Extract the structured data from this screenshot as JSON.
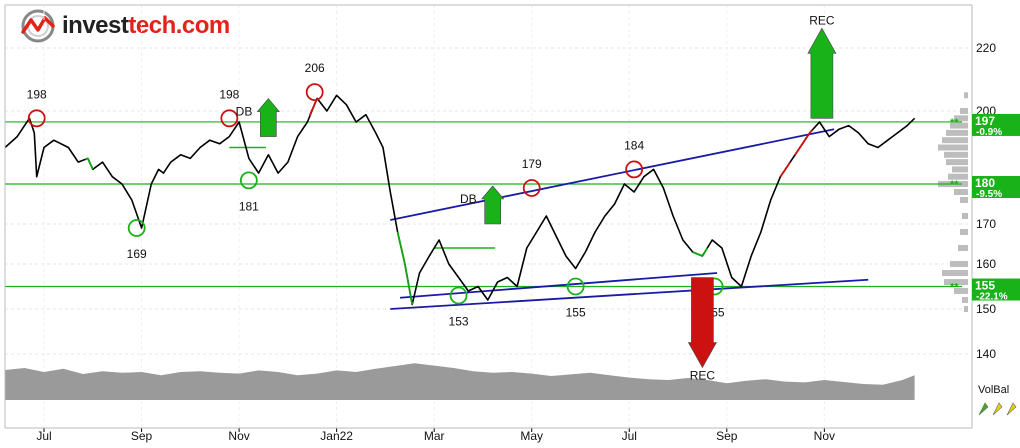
{
  "brand": {
    "name_part1": "invest",
    "name_part2": "tech.com"
  },
  "chart_data": {
    "type": "line",
    "title": "",
    "y_ticks": [
      140,
      150,
      160,
      170,
      180,
      200,
      220
    ],
    "x_ticks": [
      {
        "label": "Jul",
        "x": 1.0
      },
      {
        "label": "Sep",
        "x": 3.0
      },
      {
        "label": "Nov",
        "x": 5.0
      },
      {
        "label": "Jan22",
        "x": 7.0
      },
      {
        "label": "Mar",
        "x": 9.0
      },
      {
        "label": "May",
        "x": 11.0
      },
      {
        "label": "Jul",
        "x": 13.0
      },
      {
        "label": "Sep",
        "x": 15.0
      },
      {
        "label": "Nov",
        "x": 17.0
      }
    ],
    "x_range": [
      0.2,
      18.9
    ],
    "price": {
      "name": "Price",
      "color": "#000000",
      "x": [
        0.2,
        0.45,
        0.7,
        0.8,
        0.85,
        1.0,
        1.2,
        1.5,
        1.7,
        1.9,
        2.0,
        2.2,
        2.4,
        2.6,
        2.8,
        3.0,
        3.2,
        3.35,
        3.45,
        3.6,
        3.8,
        4.0,
        4.2,
        4.4,
        4.6,
        4.8,
        5.0,
        5.2,
        5.4,
        5.6,
        5.8,
        6.0,
        6.2,
        6.4,
        6.6,
        6.8,
        7.0,
        7.2,
        7.4,
        7.6,
        7.8,
        7.95,
        8.1,
        8.25,
        8.4,
        8.55,
        8.7,
        8.9,
        9.1,
        9.3,
        9.5,
        9.7,
        9.9,
        10.1,
        10.3,
        10.5,
        10.7,
        10.9,
        11.1,
        11.3,
        11.5,
        11.7,
        11.9,
        12.1,
        12.3,
        12.5,
        12.7,
        12.9,
        13.1,
        13.3,
        13.5,
        13.7,
        13.9,
        14.1,
        14.3,
        14.5,
        14.7,
        14.9,
        15.1,
        15.3,
        15.5,
        15.7,
        15.9,
        16.1,
        16.3,
        16.5,
        16.7,
        16.9,
        17.1,
        17.3,
        17.5,
        17.7,
        17.9,
        18.1,
        18.3,
        18.5,
        18.7,
        18.85
      ],
      "y": [
        190,
        193,
        198,
        194,
        182,
        190,
        192,
        190,
        186,
        187,
        184,
        186,
        182,
        180,
        176,
        169,
        180,
        184,
        183,
        186,
        188,
        187,
        190,
        192,
        191,
        193,
        197,
        187,
        183,
        188,
        183,
        186,
        193,
        197,
        204,
        200,
        205,
        202,
        197,
        199,
        194,
        190,
        178,
        168,
        160,
        151,
        158,
        162,
        166,
        160,
        157,
        154,
        155,
        152,
        156,
        157,
        155,
        164,
        168,
        172,
        167,
        162,
        159,
        163,
        168,
        172,
        175,
        180,
        178,
        182,
        184,
        179,
        172,
        166,
        163,
        162,
        166,
        164,
        157,
        155,
        162,
        168,
        176,
        182,
        186,
        190,
        194,
        197,
        193,
        195,
        196,
        194,
        191,
        190,
        192,
        194,
        196,
        198
      ]
    },
    "volume_balance": {
      "name": "VolBal",
      "x": [
        0.2,
        0.6,
        1.0,
        1.4,
        1.8,
        2.2,
        2.6,
        3.0,
        3.4,
        3.8,
        4.2,
        4.6,
        5.0,
        5.4,
        5.8,
        6.2,
        6.6,
        7.0,
        7.4,
        7.8,
        8.2,
        8.6,
        9.0,
        9.4,
        9.8,
        10.2,
        10.6,
        11.0,
        11.4,
        11.8,
        12.2,
        12.6,
        13.0,
        13.4,
        13.8,
        14.2,
        14.6,
        15.0,
        15.4,
        15.8,
        16.2,
        16.6,
        17.0,
        17.4,
        17.8,
        18.2,
        18.6,
        18.85
      ],
      "y": [
        0.75,
        0.8,
        0.7,
        0.78,
        0.65,
        0.72,
        0.68,
        0.7,
        0.62,
        0.7,
        0.72,
        0.68,
        0.66,
        0.74,
        0.7,
        0.62,
        0.66,
        0.74,
        0.7,
        0.78,
        0.85,
        0.92,
        0.86,
        0.8,
        0.72,
        0.68,
        0.7,
        0.66,
        0.6,
        0.64,
        0.68,
        0.62,
        0.56,
        0.52,
        0.5,
        0.55,
        0.5,
        0.42,
        0.48,
        0.52,
        0.46,
        0.44,
        0.5,
        0.45,
        0.4,
        0.38,
        0.5,
        0.62
      ]
    },
    "color_segments": [
      {
        "color": "#11a611",
        "from": 1.85,
        "to": 2.0
      },
      {
        "color": "#11a611",
        "from": 8.25,
        "to": 8.55
      },
      {
        "color": "#cc1111",
        "from": 6.45,
        "to": 6.6
      },
      {
        "color": "#11a611",
        "from": 14.3,
        "to": 14.6
      },
      {
        "color": "#cc1111",
        "from": 16.4,
        "to": 16.75
      },
      {
        "color": "#cc1111",
        "from": 16.1,
        "to": 16.3
      }
    ],
    "support_resistance": [
      {
        "value": 197,
        "label": "197",
        "change": "-0.9%"
      },
      {
        "value": 180,
        "label": "180",
        "change": "-9.5%"
      },
      {
        "value": 155,
        "label": "155",
        "change": "-22.1%"
      }
    ],
    "trend_lines": [
      {
        "x1": 8.1,
        "y1": 171,
        "x2": 17.2,
        "y2": 195
      },
      {
        "x1": 8.1,
        "y1": 150,
        "x2": 17.9,
        "y2": 156.5
      },
      {
        "x1": 8.3,
        "y1": 152.5,
        "x2": 14.8,
        "y2": 158
      }
    ],
    "pivots": [
      {
        "x": 0.85,
        "y": 198,
        "type": "top",
        "label": "198"
      },
      {
        "x": 2.9,
        "y": 169,
        "type": "bottom",
        "label": "169"
      },
      {
        "x": 4.8,
        "y": 198,
        "type": "top",
        "label": "198"
      },
      {
        "x": 5.2,
        "y": 181,
        "type": "bottom",
        "label": "181"
      },
      {
        "x": 6.55,
        "y": 206,
        "type": "top",
        "label": "206"
      },
      {
        "x": 9.5,
        "y": 153,
        "type": "bottom",
        "label": "153"
      },
      {
        "x": 11.0,
        "y": 179,
        "type": "top",
        "label": "179"
      },
      {
        "x": 11.9,
        "y": 155,
        "type": "bottom",
        "label": "155"
      },
      {
        "x": 13.1,
        "y": 184,
        "type": "top",
        "label": "184"
      },
      {
        "x": 14.75,
        "y": 155,
        "type": "bottom",
        "label": "155"
      }
    ],
    "signals": [
      {
        "label": "DB",
        "x": 5.6,
        "y": 193,
        "direction": "up",
        "size": "small"
      },
      {
        "label": "DB",
        "x": 10.2,
        "y": 170,
        "direction": "up",
        "size": "small"
      },
      {
        "label": "REC",
        "x": 14.5,
        "y": 157,
        "direction": "down",
        "size": "large"
      },
      {
        "label": "REC",
        "x": 16.95,
        "y": 198,
        "direction": "up",
        "size": "large"
      }
    ],
    "pattern_lines": [
      {
        "x1": 4.8,
        "y1": 190,
        "x2": 5.55,
        "y2": 190
      },
      {
        "x1": 9.0,
        "y1": 164,
        "x2": 10.25,
        "y2": 164
      }
    ],
    "volume_label": "VolBal"
  }
}
